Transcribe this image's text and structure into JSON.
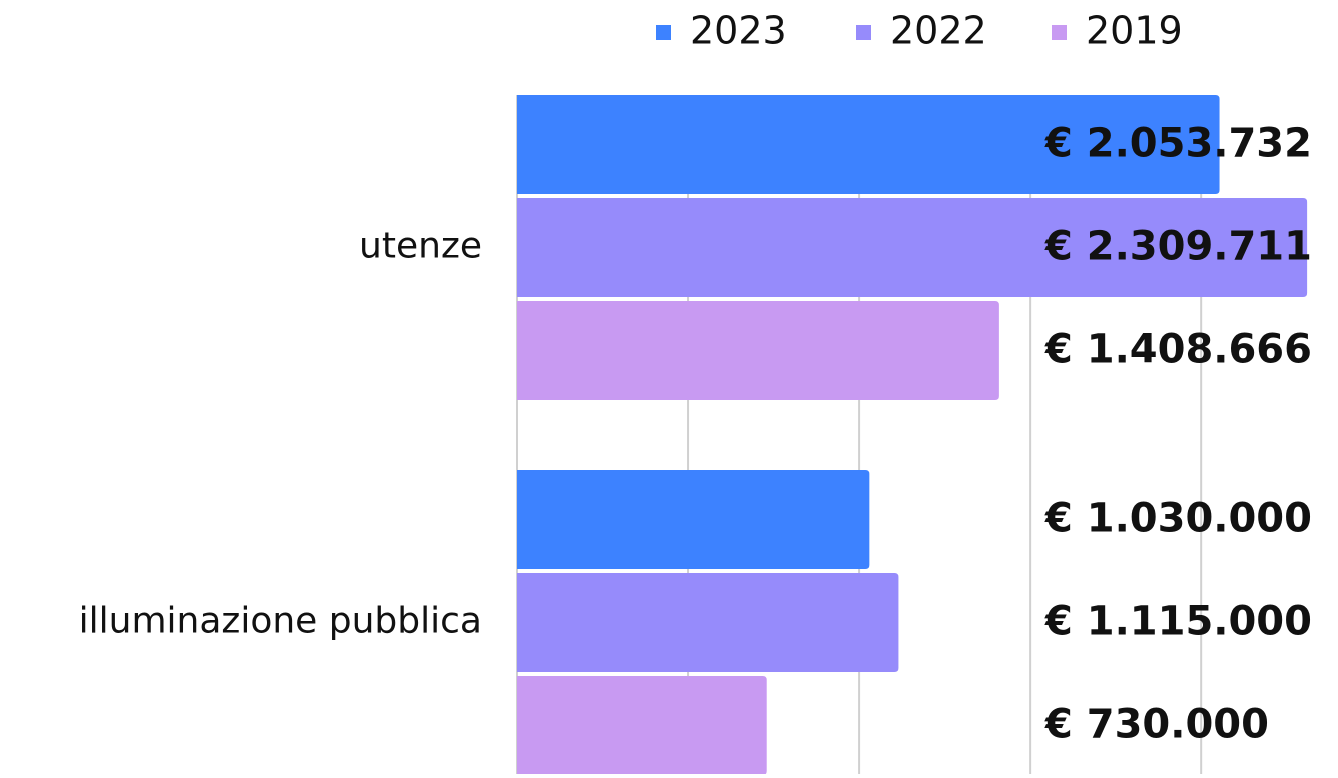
{
  "chart_data": {
    "type": "hbar",
    "categories": [
      "utenze",
      "illuminazione pubblica"
    ],
    "series": [
      {
        "name": "2023",
        "color": "#3d82ff",
        "values": [
          2053732,
          1030000
        ],
        "value_labels": [
          "€ 2.053.732",
          "€ 1.030.000"
        ]
      },
      {
        "name": "2022",
        "color": "#968bfb",
        "values": [
          2309711,
          1115000
        ],
        "value_labels": [
          "€ 2.309.711",
          "€ 1.115.000"
        ]
      },
      {
        "name": "2019",
        "color": "#c89af2",
        "values": [
          1408666,
          730000
        ],
        "value_labels": [
          "€ 1.408.666",
          "€ 730.000"
        ]
      }
    ],
    "xlim": [
      0,
      2400000
    ],
    "xticks": [
      0,
      500000,
      1000000,
      1500000,
      2000000
    ],
    "grid": true,
    "legend": "top"
  }
}
